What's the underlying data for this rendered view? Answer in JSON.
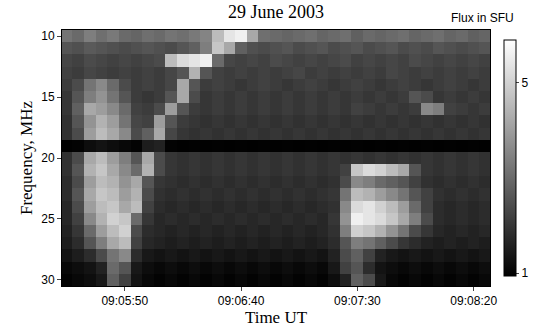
{
  "chart_data": {
    "type": "heatmap",
    "title": "29 June 2003",
    "x_label": "Time UT",
    "y_label": "Frequency, MHz",
    "x": [
      32725,
      32730,
      32735,
      32740,
      32745,
      32750,
      32755,
      32760,
      32765,
      32770,
      32775,
      32780,
      32785,
      32790,
      32795,
      32800,
      32805,
      32810,
      32815,
      32820,
      32825,
      32830,
      32835,
      32840,
      32845,
      32850,
      32855,
      32860,
      32865,
      32870,
      32875,
      32880,
      32885,
      32890,
      32895,
      32900,
      32905
    ],
    "y": [
      10,
      11,
      12,
      13,
      14,
      15,
      16,
      17,
      18,
      19,
      20,
      21,
      22,
      23,
      24,
      25,
      26,
      27,
      28,
      29,
      30
    ],
    "cells": [
      [
        3.2,
        3.0,
        3.4,
        3.1,
        3.3,
        3.0,
        2.9,
        3.1,
        3.0,
        3.2,
        3.1,
        3.3,
        3.5,
        4.6,
        5.4,
        5.6,
        4.2,
        3.1,
        3.0,
        2.9,
        3.0,
        3.1,
        2.9,
        3.0,
        3.1,
        2.8,
        3.0,
        2.9,
        3.0,
        3.1,
        2.9,
        3.0,
        3.1,
        2.9,
        3.0,
        2.8,
        2.9
      ],
      [
        2.6,
        2.5,
        2.7,
        2.6,
        2.5,
        2.4,
        2.5,
        2.6,
        2.5,
        2.4,
        2.6,
        2.8,
        3.4,
        4.8,
        4.2,
        2.8,
        2.5,
        2.4,
        2.5,
        2.6,
        2.4,
        2.5,
        2.6,
        2.4,
        2.5,
        2.6,
        2.4,
        2.5,
        2.6,
        2.4,
        2.5,
        2.4,
        2.6,
        2.5,
        2.4,
        2.5,
        2.6
      ],
      [
        2.3,
        2.2,
        2.4,
        2.3,
        2.2,
        2.3,
        2.2,
        2.3,
        2.4,
        4.6,
        5.2,
        5.4,
        5.6,
        3.0,
        2.3,
        2.2,
        2.3,
        2.2,
        2.4,
        2.3,
        2.2,
        2.3,
        2.2,
        2.3,
        2.4,
        2.2,
        2.3,
        2.2,
        2.3,
        2.2,
        2.4,
        2.3,
        2.2,
        2.3,
        2.2,
        2.3,
        2.2
      ],
      [
        2.2,
        2.1,
        2.3,
        2.2,
        2.1,
        2.2,
        2.1,
        2.2,
        2.1,
        2.3,
        2.6,
        4.4,
        2.6,
        2.2,
        2.1,
        2.2,
        2.1,
        2.2,
        2.1,
        2.2,
        2.3,
        2.1,
        2.2,
        2.1,
        2.2,
        2.1,
        2.2,
        2.1,
        2.3,
        2.2,
        2.1,
        2.2,
        2.1,
        2.2,
        2.1,
        2.2,
        2.1
      ],
      [
        2.1,
        2.4,
        3.2,
        3.6,
        3.0,
        2.4,
        2.1,
        2.2,
        2.1,
        2.3,
        4.2,
        2.6,
        2.1,
        2.2,
        2.1,
        2.0,
        2.1,
        2.2,
        2.1,
        2.0,
        2.1,
        2.2,
        2.1,
        2.0,
        2.1,
        2.2,
        2.1,
        2.0,
        2.1,
        2.2,
        2.1,
        2.0,
        2.1,
        2.2,
        2.1,
        2.0,
        2.1
      ],
      [
        2.0,
        2.6,
        3.4,
        3.8,
        3.2,
        2.6,
        2.1,
        2.0,
        2.1,
        2.6,
        4.2,
        2.4,
        2.0,
        2.1,
        2.0,
        2.1,
        2.0,
        2.1,
        2.0,
        2.1,
        2.0,
        2.1,
        2.0,
        2.1,
        2.0,
        2.1,
        2.0,
        2.1,
        2.0,
        2.1,
        2.6,
        2.4,
        2.0,
        2.1,
        2.0,
        2.1,
        2.0
      ],
      [
        2.0,
        2.8,
        4.2,
        4.0,
        3.6,
        3.0,
        2.2,
        2.1,
        2.4,
        4.0,
        2.6,
        2.1,
        2.0,
        2.1,
        2.0,
        2.1,
        2.0,
        2.1,
        2.0,
        2.1,
        2.0,
        2.1,
        2.0,
        2.1,
        2.0,
        2.2,
        2.1,
        2.0,
        2.1,
        2.0,
        2.1,
        3.6,
        3.4,
        2.2,
        2.1,
        2.0,
        2.1
      ],
      [
        1.9,
        2.6,
        3.8,
        4.4,
        4.0,
        3.2,
        2.3,
        2.2,
        4.0,
        2.6,
        2.1,
        2.0,
        1.9,
        2.0,
        1.9,
        2.0,
        1.9,
        2.0,
        1.9,
        2.0,
        1.9,
        2.0,
        1.9,
        2.0,
        1.9,
        2.0,
        1.9,
        2.0,
        1.9,
        2.0,
        1.9,
        2.0,
        1.9,
        2.0,
        1.9,
        2.0,
        1.9
      ],
      [
        1.9,
        2.4,
        4.0,
        4.6,
        4.2,
        3.6,
        2.4,
        2.8,
        4.2,
        2.3,
        2.0,
        1.9,
        2.0,
        1.9,
        2.0,
        1.9,
        2.0,
        1.9,
        2.0,
        1.9,
        2.0,
        1.9,
        2.0,
        1.9,
        2.0,
        1.9,
        2.0,
        1.9,
        2.0,
        1.9,
        2.0,
        1.9,
        2.0,
        1.9,
        2.0,
        1.9,
        2.0
      ],
      [
        0.96,
        1.0,
        1.2,
        1.3,
        1.2,
        1.1,
        1.0,
        1.5,
        1.6,
        1.0,
        0.96,
        0.97,
        0.96,
        0.97,
        0.96,
        0.97,
        0.96,
        0.97,
        0.96,
        0.97,
        0.96,
        0.97,
        0.96,
        0.97,
        0.96,
        0.97,
        0.96,
        0.97,
        0.96,
        0.97,
        0.96,
        0.97,
        0.96,
        0.97,
        0.96,
        0.97,
        0.96
      ],
      [
        1.9,
        2.4,
        4.2,
        4.6,
        4.0,
        3.4,
        2.6,
        4.2,
        2.4,
        2.0,
        1.9,
        2.0,
        1.9,
        2.0,
        1.9,
        2.0,
        1.9,
        2.0,
        1.9,
        2.0,
        1.9,
        2.0,
        1.9,
        2.0,
        1.9,
        2.0,
        1.9,
        2.0,
        1.9,
        2.0,
        1.9,
        2.0,
        1.9,
        2.0,
        1.9,
        2.0,
        1.9
      ],
      [
        1.9,
        2.6,
        4.4,
        4.8,
        4.2,
        3.6,
        3.0,
        4.4,
        2.4,
        2.0,
        1.9,
        2.0,
        1.9,
        2.0,
        1.9,
        2.0,
        1.9,
        2.0,
        1.9,
        2.0,
        1.9,
        2.0,
        1.9,
        2.0,
        2.2,
        4.8,
        5.2,
        5.0,
        4.6,
        4.2,
        2.6,
        2.0,
        1.9,
        2.0,
        1.9,
        2.0,
        1.9
      ],
      [
        1.8,
        2.4,
        4.0,
        4.6,
        4.4,
        3.8,
        4.2,
        2.6,
        2.0,
        1.9,
        1.8,
        1.9,
        1.8,
        1.9,
        1.8,
        1.9,
        1.8,
        1.9,
        1.8,
        1.9,
        1.8,
        1.9,
        1.8,
        1.9,
        2.4,
        3.6,
        3.4,
        3.0,
        2.8,
        2.6,
        2.2,
        1.9,
        1.8,
        1.9,
        1.8,
        1.9,
        1.8
      ],
      [
        1.8,
        2.6,
        4.2,
        4.8,
        4.6,
        4.0,
        4.4,
        2.4,
        1.9,
        1.8,
        1.9,
        1.8,
        1.9,
        1.8,
        1.9,
        1.8,
        1.9,
        1.8,
        1.9,
        1.8,
        1.9,
        1.8,
        1.9,
        2.0,
        3.2,
        4.6,
        4.4,
        4.0,
        3.6,
        3.2,
        2.6,
        2.2,
        1.9,
        1.8,
        1.9,
        1.8,
        1.9
      ],
      [
        1.7,
        2.4,
        4.0,
        4.6,
        4.8,
        4.2,
        4.6,
        2.2,
        1.8,
        1.7,
        1.8,
        1.7,
        1.8,
        1.7,
        1.8,
        1.7,
        1.8,
        1.7,
        1.8,
        1.7,
        1.8,
        1.7,
        1.8,
        1.9,
        3.6,
        5.2,
        5.4,
        5.0,
        4.6,
        4.0,
        3.0,
        2.2,
        1.8,
        1.7,
        1.8,
        1.7,
        1.8
      ],
      [
        1.7,
        2.2,
        3.6,
        4.4,
        5.0,
        4.8,
        3.0,
        2.0,
        1.7,
        1.8,
        1.7,
        1.8,
        1.7,
        1.8,
        1.7,
        1.8,
        1.7,
        1.8,
        1.7,
        1.8,
        1.7,
        1.8,
        1.7,
        2.0,
        3.8,
        5.6,
        5.4,
        5.2,
        4.8,
        4.2,
        3.4,
        2.4,
        1.8,
        1.7,
        1.8,
        1.7,
        1.8
      ],
      [
        1.6,
        2.0,
        3.0,
        4.0,
        4.6,
        5.0,
        2.4,
        1.8,
        1.7,
        1.6,
        1.7,
        1.6,
        1.7,
        1.6,
        1.7,
        1.6,
        1.7,
        1.6,
        1.7,
        1.6,
        1.7,
        1.6,
        1.7,
        1.9,
        3.4,
        5.0,
        4.8,
        4.4,
        3.8,
        3.2,
        2.4,
        2.0,
        1.7,
        1.6,
        1.7,
        1.6,
        1.7
      ],
      [
        1.5,
        1.8,
        2.6,
        3.4,
        4.2,
        4.6,
        2.2,
        1.7,
        1.6,
        1.5,
        1.6,
        1.5,
        1.6,
        1.5,
        1.6,
        1.5,
        1.6,
        1.5,
        1.6,
        1.5,
        1.6,
        1.5,
        1.6,
        1.8,
        2.6,
        3.4,
        3.2,
        2.8,
        2.4,
        2.0,
        1.8,
        1.6,
        1.5,
        1.6,
        1.5,
        1.6,
        1.5
      ],
      [
        1.3,
        1.5,
        1.8,
        2.4,
        3.2,
        3.6,
        1.8,
        1.4,
        1.3,
        1.4,
        1.3,
        1.4,
        1.3,
        1.4,
        1.3,
        1.4,
        1.3,
        1.4,
        1.3,
        1.4,
        1.3,
        1.4,
        1.3,
        1.6,
        2.4,
        2.8,
        2.2,
        1.6,
        1.4,
        1.3,
        1.4,
        1.3,
        1.4,
        1.3,
        1.4,
        1.3,
        1.4
      ],
      [
        1.1,
        1.2,
        1.3,
        1.6,
        3.0,
        2.6,
        1.4,
        1.2,
        1.1,
        1.2,
        1.1,
        1.2,
        1.1,
        1.2,
        1.1,
        1.2,
        1.1,
        1.2,
        1.1,
        1.2,
        1.1,
        1.2,
        1.1,
        1.4,
        2.2,
        2.6,
        1.8,
        1.3,
        1.2,
        1.1,
        1.2,
        1.1,
        1.2,
        1.1,
        1.2,
        1.1,
        1.2
      ],
      [
        1.0,
        1.1,
        1.2,
        1.4,
        2.8,
        2.2,
        1.3,
        1.1,
        1.0,
        1.1,
        1.0,
        1.1,
        1.0,
        1.1,
        1.0,
        1.1,
        1.0,
        1.1,
        1.0,
        1.1,
        1.0,
        1.1,
        1.0,
        1.2,
        1.6,
        2.8,
        2.4,
        1.4,
        1.1,
        1.0,
        1.1,
        1.0,
        1.1,
        1.0,
        1.1,
        1.0,
        1.1
      ]
    ],
    "xlim": [
      32723,
      32907
    ],
    "xticks": [
      {
        "value": 32750,
        "label": "09:05:50"
      },
      {
        "value": 32800,
        "label": "09:06:40"
      },
      {
        "value": 32850,
        "label": "09:07:30"
      },
      {
        "value": 32900,
        "label": "09:08:20"
      }
    ],
    "ylim": [
      30.5,
      9.5
    ],
    "yticks": [
      10,
      15,
      20,
      25,
      30
    ],
    "colorbar": {
      "title": "Flux in SFU",
      "range": [
        0.94,
        5.9
      ],
      "ticks": [
        1,
        5
      ]
    }
  }
}
